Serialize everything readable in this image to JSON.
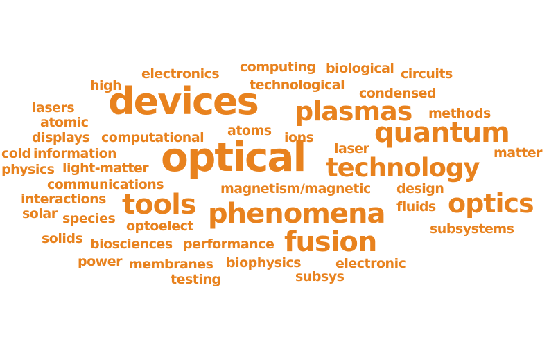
{
  "color": "#E8821E",
  "words": [
    "electronics",
    "computing",
    "biological",
    "circuits",
    "high",
    "technological",
    "condensed",
    "devices",
    "lasers",
    "plasmas",
    "methods",
    "atomic",
    "quantum",
    "displays",
    "computational",
    "atoms",
    "ions",
    "cold",
    "information",
    "laser",
    "matter",
    "optical",
    "technology",
    "physics",
    "light-matter",
    "communications",
    "magnetism/magnetic",
    "design",
    "interactions",
    "tools",
    "optics",
    "phenomena",
    "fluids",
    "solar",
    "species",
    "optoelect",
    "subsystems",
    "solids",
    "fusion",
    "biosciences",
    "performance",
    "power",
    "membranes",
    "biophysics",
    "electronic",
    "testing",
    "subsys"
  ]
}
